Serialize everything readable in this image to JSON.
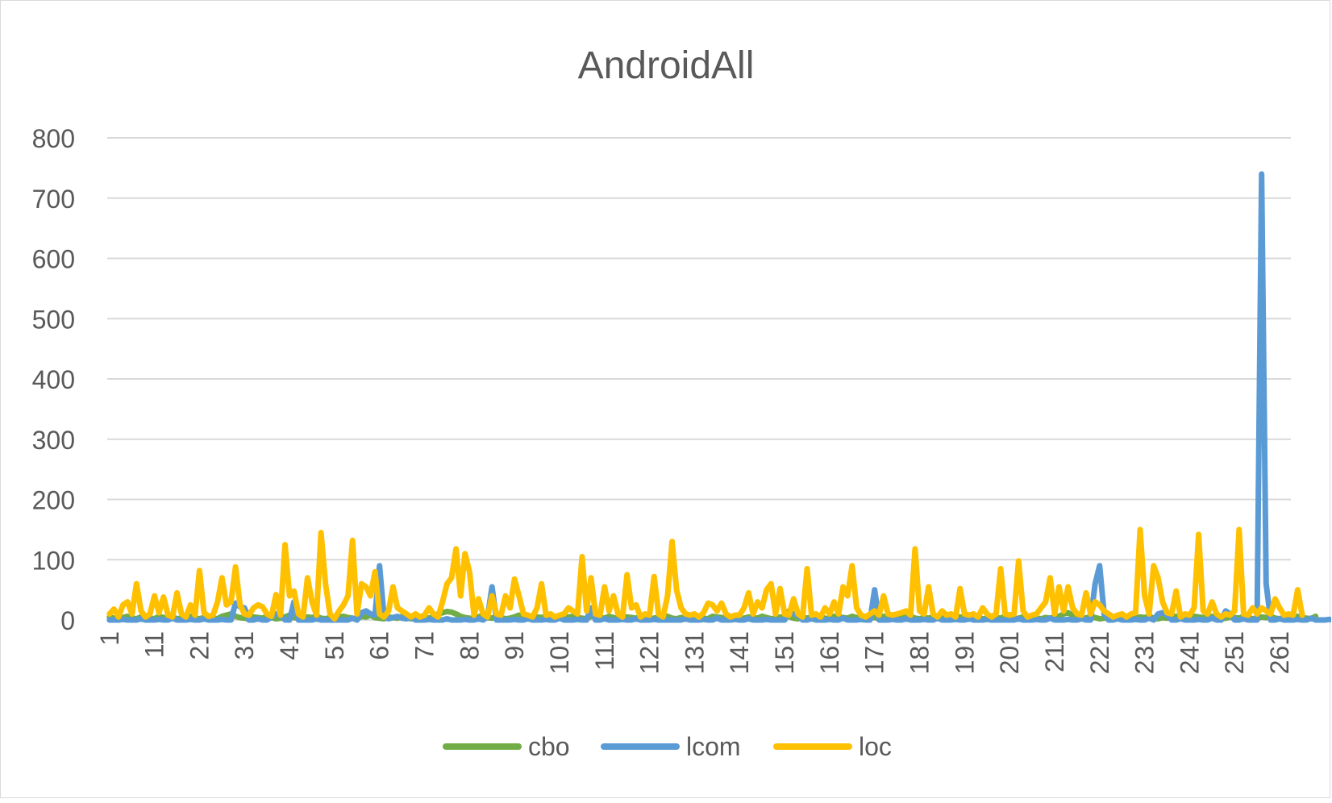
{
  "chart_data": {
    "type": "line",
    "title": "AndroidAll",
    "xlabel": "",
    "ylabel": "",
    "ylim": [
      0,
      800
    ],
    "yticks": [
      0,
      100,
      200,
      300,
      400,
      500,
      600,
      700,
      800
    ],
    "x_start": 1,
    "x_end": 263,
    "xtick_labels": [
      "1",
      "11",
      "21",
      "31",
      "41",
      "51",
      "61",
      "71",
      "81",
      "91",
      "101",
      "111",
      "121",
      "131",
      "141",
      "151",
      "161",
      "171",
      "181",
      "191",
      "201",
      "211",
      "221",
      "231",
      "241",
      "251",
      "261"
    ],
    "grid": "horizontal",
    "legend_position": "bottom",
    "series": [
      {
        "name": "cbo",
        "color": "#70ad47",
        "values": [
          5,
          3,
          2,
          4,
          6,
          3,
          2,
          5,
          4,
          3,
          2,
          6,
          4,
          3,
          5,
          2,
          3,
          4,
          6,
          3,
          2,
          4,
          5,
          3,
          2,
          6,
          8,
          10,
          6,
          4,
          3,
          2,
          5,
          4,
          3,
          6,
          4,
          2,
          3,
          5,
          8,
          4,
          3,
          2,
          5,
          4,
          6,
          3,
          2,
          4,
          3,
          5,
          6,
          4,
          3,
          2,
          6,
          5,
          8,
          4,
          3,
          2,
          5,
          4,
          3,
          6,
          4,
          2,
          3,
          5,
          4,
          3,
          6,
          10,
          12,
          14,
          13,
          10,
          6,
          4,
          3,
          2,
          5,
          8,
          4,
          3,
          6,
          4,
          2,
          3,
          5,
          8,
          4,
          3,
          2,
          5,
          4,
          6,
          3,
          2,
          4,
          3,
          5,
          6,
          4,
          3,
          2,
          6,
          5,
          4,
          3,
          6,
          4,
          2,
          3,
          5,
          4,
          3,
          6,
          4,
          2,
          3,
          5,
          4,
          6,
          3,
          2,
          4,
          3,
          5,
          6,
          4,
          3,
          2,
          6,
          5,
          4,
          3,
          6,
          4,
          2,
          3,
          5,
          4,
          3,
          6,
          4,
          2,
          3,
          5,
          4,
          6,
          3,
          2,
          4,
          3,
          5,
          6,
          4,
          3,
          2,
          6,
          5,
          4,
          3,
          6,
          4,
          2,
          3,
          5,
          4,
          3,
          6,
          4,
          2,
          3,
          5,
          4,
          6,
          3,
          2,
          4,
          3,
          5,
          6,
          4,
          3,
          2,
          6,
          5,
          4,
          3,
          6,
          4,
          2,
          3,
          5,
          4,
          3,
          6,
          4,
          2,
          3,
          5,
          4,
          6,
          3,
          2,
          4,
          3,
          5,
          6,
          10,
          12,
          8,
          5,
          4,
          3,
          6,
          4,
          2,
          3,
          5,
          4,
          3,
          6,
          4,
          2,
          3,
          5,
          4,
          6,
          3,
          2,
          4,
          3,
          5,
          6,
          4,
          3,
          2,
          6,
          5,
          4,
          3,
          6,
          4,
          2,
          3,
          5,
          4,
          3,
          6,
          4,
          2,
          3,
          5,
          4,
          6,
          3,
          2,
          4,
          3,
          5,
          6,
          4,
          3,
          2,
          6
        ]
      },
      {
        "name": "lcom",
        "color": "#5b9bd5",
        "values": [
          0,
          0,
          0,
          1,
          0,
          0,
          0,
          2,
          0,
          0,
          0,
          1,
          0,
          0,
          3,
          0,
          0,
          0,
          1,
          0,
          0,
          2,
          0,
          0,
          0,
          1,
          0,
          0,
          28,
          22,
          20,
          0,
          0,
          2,
          0,
          0,
          5,
          10,
          8,
          0,
          0,
          30,
          0,
          0,
          0,
          0,
          2,
          0,
          0,
          0,
          0,
          0,
          0,
          0,
          3,
          0,
          12,
          15,
          10,
          8,
          90,
          5,
          2,
          4,
          6,
          3,
          2,
          5,
          0,
          0,
          0,
          1,
          0,
          0,
          0,
          2,
          0,
          0,
          0,
          1,
          0,
          0,
          2,
          0,
          5,
          55,
          0,
          0,
          0,
          0,
          1,
          0,
          0,
          2,
          0,
          0,
          0,
          1,
          0,
          0,
          3,
          0,
          0,
          0,
          1,
          0,
          0,
          20,
          0,
          0,
          2,
          0,
          0,
          0,
          1,
          0,
          0,
          2,
          0,
          0,
          0,
          1,
          0,
          0,
          0,
          0,
          0,
          0,
          2,
          0,
          0,
          0,
          1,
          0,
          0,
          3,
          0,
          0,
          0,
          1,
          0,
          0,
          2,
          0,
          0,
          0,
          1,
          0,
          0,
          0,
          0,
          15,
          10,
          8,
          0,
          0,
          2,
          0,
          0,
          0,
          1,
          0,
          0,
          3,
          0,
          0,
          0,
          1,
          0,
          0,
          50,
          0,
          0,
          0,
          1,
          0,
          0,
          2,
          0,
          0,
          0,
          1,
          0,
          0,
          3,
          0,
          0,
          0,
          1,
          0,
          0,
          2,
          0,
          0,
          0,
          1,
          0,
          0,
          0,
          0,
          0,
          0,
          2,
          0,
          0,
          0,
          1,
          0,
          0,
          3,
          0,
          0,
          0,
          1,
          0,
          0,
          2,
          0,
          0,
          60,
          90,
          10,
          0,
          0,
          2,
          0,
          0,
          0,
          1,
          0,
          0,
          3,
          0,
          10,
          12,
          8,
          0,
          0,
          2,
          0,
          0,
          0,
          1,
          0,
          0,
          3,
          0,
          0,
          15,
          10,
          0,
          0,
          2,
          0,
          0,
          0,
          740,
          60,
          0,
          0,
          2,
          0,
          0,
          0,
          1,
          0,
          0,
          3,
          0,
          0,
          0,
          1,
          0,
          0,
          2,
          0,
          0,
          0,
          1,
          0,
          0,
          0,
          0
        ]
      },
      {
        "name": "loc",
        "color": "#ffc000",
        "values": [
          10,
          18,
          5,
          25,
          30,
          10,
          60,
          15,
          5,
          10,
          40,
          12,
          38,
          8,
          5,
          45,
          10,
          5,
          25,
          8,
          82,
          12,
          6,
          8,
          30,
          70,
          25,
          30,
          88,
          25,
          10,
          8,
          20,
          25,
          22,
          10,
          6,
          42,
          8,
          125,
          40,
          48,
          10,
          5,
          70,
          30,
          8,
          145,
          60,
          10,
          2,
          15,
          25,
          40,
          132,
          10,
          60,
          55,
          40,
          80,
          10,
          5,
          15,
          55,
          20,
          15,
          10,
          5,
          10,
          5,
          8,
          20,
          10,
          5,
          30,
          60,
          70,
          118,
          40,
          110,
          80,
          8,
          35,
          10,
          5,
          40,
          10,
          8,
          40,
          20,
          68,
          40,
          10,
          8,
          5,
          20,
          60,
          8,
          10,
          5,
          8,
          10,
          20,
          15,
          10,
          105,
          15,
          70,
          10,
          8,
          55,
          15,
          40,
          10,
          5,
          75,
          20,
          25,
          5,
          10,
          8,
          72,
          10,
          5,
          40,
          130,
          50,
          20,
          10,
          8,
          10,
          5,
          12,
          28,
          25,
          15,
          28,
          10,
          5,
          8,
          8,
          20,
          45,
          10,
          30,
          20,
          50,
          60,
          10,
          52,
          10,
          8,
          35,
          10,
          5,
          85,
          8,
          10,
          5,
          20,
          10,
          30,
          10,
          55,
          40,
          90,
          20,
          8,
          5,
          10,
          15,
          8,
          40,
          10,
          8,
          10,
          12,
          15,
          8,
          118,
          15,
          10,
          55,
          10,
          5,
          15,
          8,
          10,
          5,
          52,
          10,
          8,
          10,
          5,
          20,
          10,
          5,
          10,
          85,
          10,
          8,
          10,
          98,
          15,
          5,
          8,
          10,
          20,
          30,
          70,
          10,
          55,
          15,
          55,
          20,
          10,
          8,
          45,
          10,
          30,
          25,
          15,
          10,
          5,
          8,
          10,
          5,
          10,
          12,
          150,
          40,
          10,
          90,
          70,
          30,
          12,
          10,
          48,
          5,
          10,
          8,
          20,
          142,
          15,
          10,
          30,
          10,
          5,
          10,
          8,
          15,
          150,
          10,
          8,
          20,
          10,
          20,
          15,
          10,
          35,
          20,
          8,
          10,
          8,
          50,
          8
        ]
      }
    ]
  }
}
